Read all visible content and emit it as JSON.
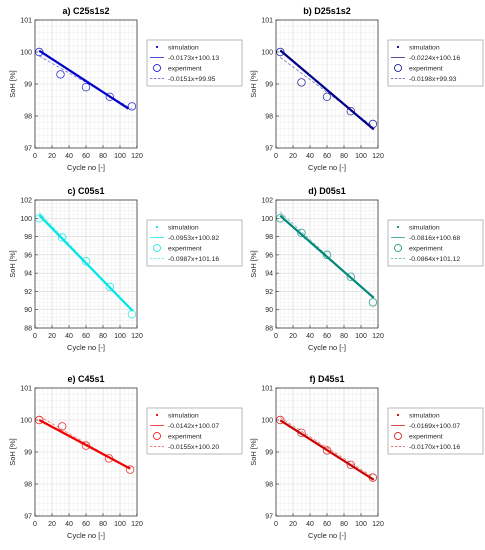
{
  "figure": {
    "ylabel": "SoH [%]",
    "xlabel": "Cycle no [-]",
    "legend_labels": {
      "simulation": "simulation",
      "experiment": "experiment"
    }
  },
  "chart_data": [
    {
      "type": "scatter",
      "title": "a) C25s1s2",
      "color": "#0000cc",
      "xlim": [
        0,
        120
      ],
      "ylim": [
        97,
        101
      ],
      "xticks": [
        0,
        20,
        40,
        60,
        80,
        100,
        120
      ],
      "yticks": [
        97,
        98,
        99,
        100,
        101
      ],
      "simulation": {
        "x": [
          5,
          110
        ],
        "y": [
          100.04,
          98.23
        ]
      },
      "sim_fit": {
        "slope": -0.0173,
        "intercept": 100.13,
        "label": "-0.0173x+100.13"
      },
      "experiment": {
        "x": [
          5,
          30,
          60,
          88,
          114
        ],
        "y": [
          100.0,
          99.3,
          98.9,
          98.6,
          98.3
        ]
      },
      "exp_fit": {
        "slope": -0.0151,
        "intercept": 99.95,
        "label": "-0.0151x+99.95"
      },
      "grid": true,
      "legend": "right"
    },
    {
      "type": "scatter",
      "title": "b) D25s1s2",
      "color": "#000088",
      "xlim": [
        0,
        120
      ],
      "ylim": [
        97,
        101
      ],
      "xticks": [
        0,
        20,
        40,
        60,
        80,
        100,
        120
      ],
      "yticks": [
        97,
        98,
        99,
        100,
        101
      ],
      "simulation": {
        "x": [
          5,
          115
        ],
        "y": [
          100.05,
          97.58
        ]
      },
      "sim_fit": {
        "slope": -0.0224,
        "intercept": 100.16,
        "label": "-0.0224x+100.16"
      },
      "experiment": {
        "x": [
          5,
          30,
          60,
          88,
          114
        ],
        "y": [
          100.0,
          99.05,
          98.6,
          98.15,
          97.75
        ]
      },
      "exp_fit": {
        "slope": -0.0198,
        "intercept": 99.93,
        "label": "-0.0198x+99.93"
      },
      "grid": true,
      "legend": "right"
    },
    {
      "type": "scatter",
      "title": "c) C05s1",
      "color": "#00e5e5",
      "xlim": [
        0,
        120
      ],
      "ylim": [
        88,
        102
      ],
      "xticks": [
        0,
        20,
        40,
        60,
        80,
        100,
        120
      ],
      "yticks": [
        88,
        90,
        92,
        94,
        96,
        98,
        100,
        102
      ],
      "simulation": {
        "x": [
          5,
          115
        ],
        "y": [
          100.34,
          89.86
        ]
      },
      "sim_fit": {
        "slope": -0.0953,
        "intercept": 100.82,
        "label": "-0.0953x+100.82"
      },
      "experiment": {
        "x": [
          5,
          32,
          60,
          88,
          114
        ],
        "y": [
          100.0,
          97.9,
          95.3,
          92.5,
          89.5
        ]
      },
      "exp_fit": {
        "slope": -0.0987,
        "intercept": 101.16,
        "label": "-0.0987x+101.16"
      },
      "grid": true,
      "legend": "right"
    },
    {
      "type": "scatter",
      "title": "d) D05s1",
      "color": "#00897b",
      "xlim": [
        0,
        120
      ],
      "ylim": [
        88,
        102
      ],
      "xticks": [
        0,
        20,
        40,
        60,
        80,
        100,
        120
      ],
      "yticks": [
        88,
        90,
        92,
        94,
        96,
        98,
        100,
        102
      ],
      "simulation": {
        "x": [
          5,
          115
        ],
        "y": [
          100.27,
          91.3
        ]
      },
      "sim_fit": {
        "slope": -0.0816,
        "intercept": 100.68,
        "label": "-0.0816x+100.68"
      },
      "experiment": {
        "x": [
          5,
          30,
          60,
          88,
          114
        ],
        "y": [
          100.0,
          98.4,
          96.0,
          93.6,
          90.8
        ]
      },
      "exp_fit": {
        "slope": -0.0864,
        "intercept": 101.12,
        "label": "-0.0864x+101.12"
      },
      "grid": true,
      "legend": "right"
    },
    {
      "type": "scatter",
      "title": "e) C45s1",
      "color": "#ee0000",
      "xlim": [
        0,
        120
      ],
      "ylim": [
        97,
        101
      ],
      "xticks": [
        0,
        20,
        40,
        60,
        80,
        100,
        120
      ],
      "yticks": [
        97,
        98,
        99,
        100,
        101
      ],
      "simulation": {
        "x": [
          5,
          112
        ],
        "y": [
          100.0,
          98.48
        ]
      },
      "sim_fit": {
        "slope": -0.0142,
        "intercept": 100.07,
        "label": "-0.0142x+100.07"
      },
      "experiment": {
        "x": [
          5,
          32,
          60,
          87,
          112
        ],
        "y": [
          100.0,
          99.8,
          99.2,
          98.8,
          98.45
        ]
      },
      "exp_fit": {
        "slope": -0.0155,
        "intercept": 100.2,
        "label": "-0.0155x+100.20"
      },
      "grid": true,
      "legend": "right"
    },
    {
      "type": "scatter",
      "title": "f) D45s1",
      "color": "#cc0000",
      "xlim": [
        0,
        120
      ],
      "ylim": [
        97,
        101
      ],
      "xticks": [
        0,
        20,
        40,
        60,
        80,
        100,
        120
      ],
      "yticks": [
        97,
        98,
        99,
        100,
        101
      ],
      "simulation": {
        "x": [
          5,
          115
        ],
        "y": [
          99.99,
          98.13
        ]
      },
      "sim_fit": {
        "slope": -0.0169,
        "intercept": 100.07,
        "label": "-0.0169x+100.07"
      },
      "experiment": {
        "x": [
          5,
          30,
          60,
          88,
          114
        ],
        "y": [
          100.0,
          99.6,
          99.05,
          98.6,
          98.2
        ]
      },
      "exp_fit": {
        "slope": -0.017,
        "intercept": 100.16,
        "label": "-0.0170x+100.16"
      },
      "grid": true,
      "legend": "right"
    }
  ]
}
